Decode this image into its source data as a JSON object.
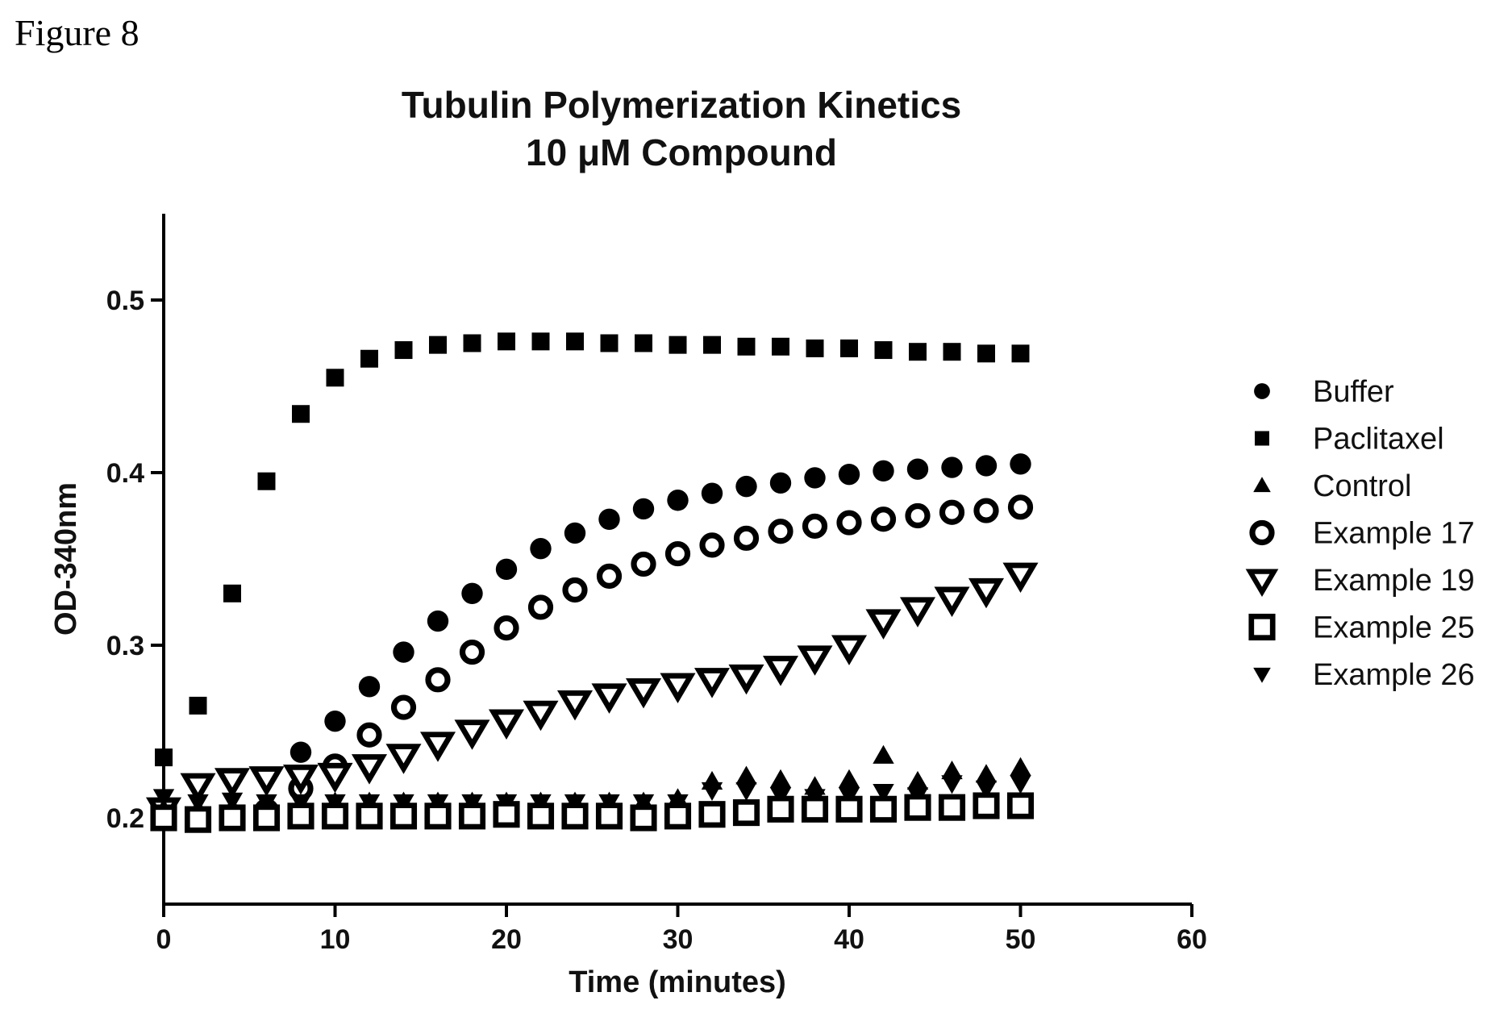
{
  "figure_label": "Figure 8",
  "chart_data": {
    "type": "scatter",
    "title": "Tubulin Polymerization Kinetics",
    "subtitle": "10 μM Compound",
    "xlabel": "Time (minutes)",
    "ylabel": "OD-340nm",
    "xlim": [
      0,
      60
    ],
    "ylim": [
      0.15,
      0.55
    ],
    "x_ticks": [
      0,
      10,
      20,
      30,
      40,
      50,
      60
    ],
    "y_ticks": [
      0.2,
      0.3,
      0.4,
      0.5
    ],
    "y_tick_labels": [
      "0.2",
      "0.3",
      "0.4",
      "0.5"
    ],
    "grid": false,
    "legend_position": "right",
    "x": [
      0,
      2,
      4,
      6,
      8,
      10,
      12,
      14,
      16,
      18,
      20,
      22,
      24,
      26,
      28,
      30,
      32,
      34,
      36,
      38,
      40,
      42,
      44,
      46,
      48,
      50
    ],
    "series": [
      {
        "name": "Buffer",
        "marker": "circle",
        "values": [
          0.2,
          0.2,
          0.201,
          0.205,
          0.238,
          0.256,
          0.276,
          0.296,
          0.314,
          0.33,
          0.344,
          0.356,
          0.365,
          0.373,
          0.379,
          0.384,
          0.388,
          0.392,
          0.394,
          0.397,
          0.399,
          0.401,
          0.402,
          0.403,
          0.404,
          0.405
        ]
      },
      {
        "name": "Paclitaxel",
        "marker": "square",
        "values": [
          0.235,
          0.265,
          0.33,
          0.395,
          0.434,
          0.455,
          0.466,
          0.471,
          0.474,
          0.475,
          0.476,
          0.476,
          0.476,
          0.475,
          0.475,
          0.474,
          0.474,
          0.473,
          0.473,
          0.472,
          0.472,
          0.471,
          0.47,
          0.47,
          0.469,
          0.469
        ]
      },
      {
        "name": "Control",
        "marker": "triangle-up",
        "values": [
          0.205,
          0.204,
          0.204,
          0.206,
          0.208,
          0.209,
          0.209,
          0.209,
          0.209,
          0.209,
          0.209,
          0.209,
          0.209,
          0.209,
          0.209,
          0.211,
          0.221,
          0.224,
          0.222,
          0.218,
          0.222,
          0.236,
          0.221,
          0.227,
          0.225,
          0.229
        ]
      },
      {
        "name": "Example 17",
        "marker": "circle-open",
        "values": [
          0.2,
          0.2,
          0.201,
          0.204,
          0.217,
          0.23,
          0.248,
          0.264,
          0.28,
          0.296,
          0.31,
          0.322,
          0.332,
          0.34,
          0.347,
          0.353,
          0.358,
          0.362,
          0.366,
          0.369,
          0.371,
          0.373,
          0.375,
          0.377,
          0.378,
          0.38
        ]
      },
      {
        "name": "Example 19",
        "marker": "triangle-down-open",
        "values": [
          0.205,
          0.219,
          0.222,
          0.223,
          0.224,
          0.225,
          0.23,
          0.236,
          0.243,
          0.25,
          0.256,
          0.261,
          0.267,
          0.271,
          0.274,
          0.277,
          0.28,
          0.282,
          0.287,
          0.293,
          0.299,
          0.314,
          0.321,
          0.327,
          0.332,
          0.341
        ]
      },
      {
        "name": "Example 25",
        "marker": "square-open",
        "values": [
          0.2,
          0.199,
          0.2,
          0.2,
          0.201,
          0.201,
          0.201,
          0.201,
          0.201,
          0.201,
          0.202,
          0.201,
          0.201,
          0.201,
          0.2,
          0.201,
          0.202,
          0.203,
          0.205,
          0.205,
          0.205,
          0.205,
          0.206,
          0.206,
          0.207,
          0.207
        ]
      },
      {
        "name": "Example 26",
        "marker": "triangle-down",
        "values": [
          0.212,
          0.209,
          0.21,
          0.209,
          0.209,
          0.209,
          0.209,
          0.209,
          0.209,
          0.209,
          0.209,
          0.209,
          0.209,
          0.209,
          0.209,
          0.209,
          0.216,
          0.216,
          0.213,
          0.212,
          0.213,
          0.215,
          0.213,
          0.22,
          0.217,
          0.22
        ]
      }
    ]
  }
}
